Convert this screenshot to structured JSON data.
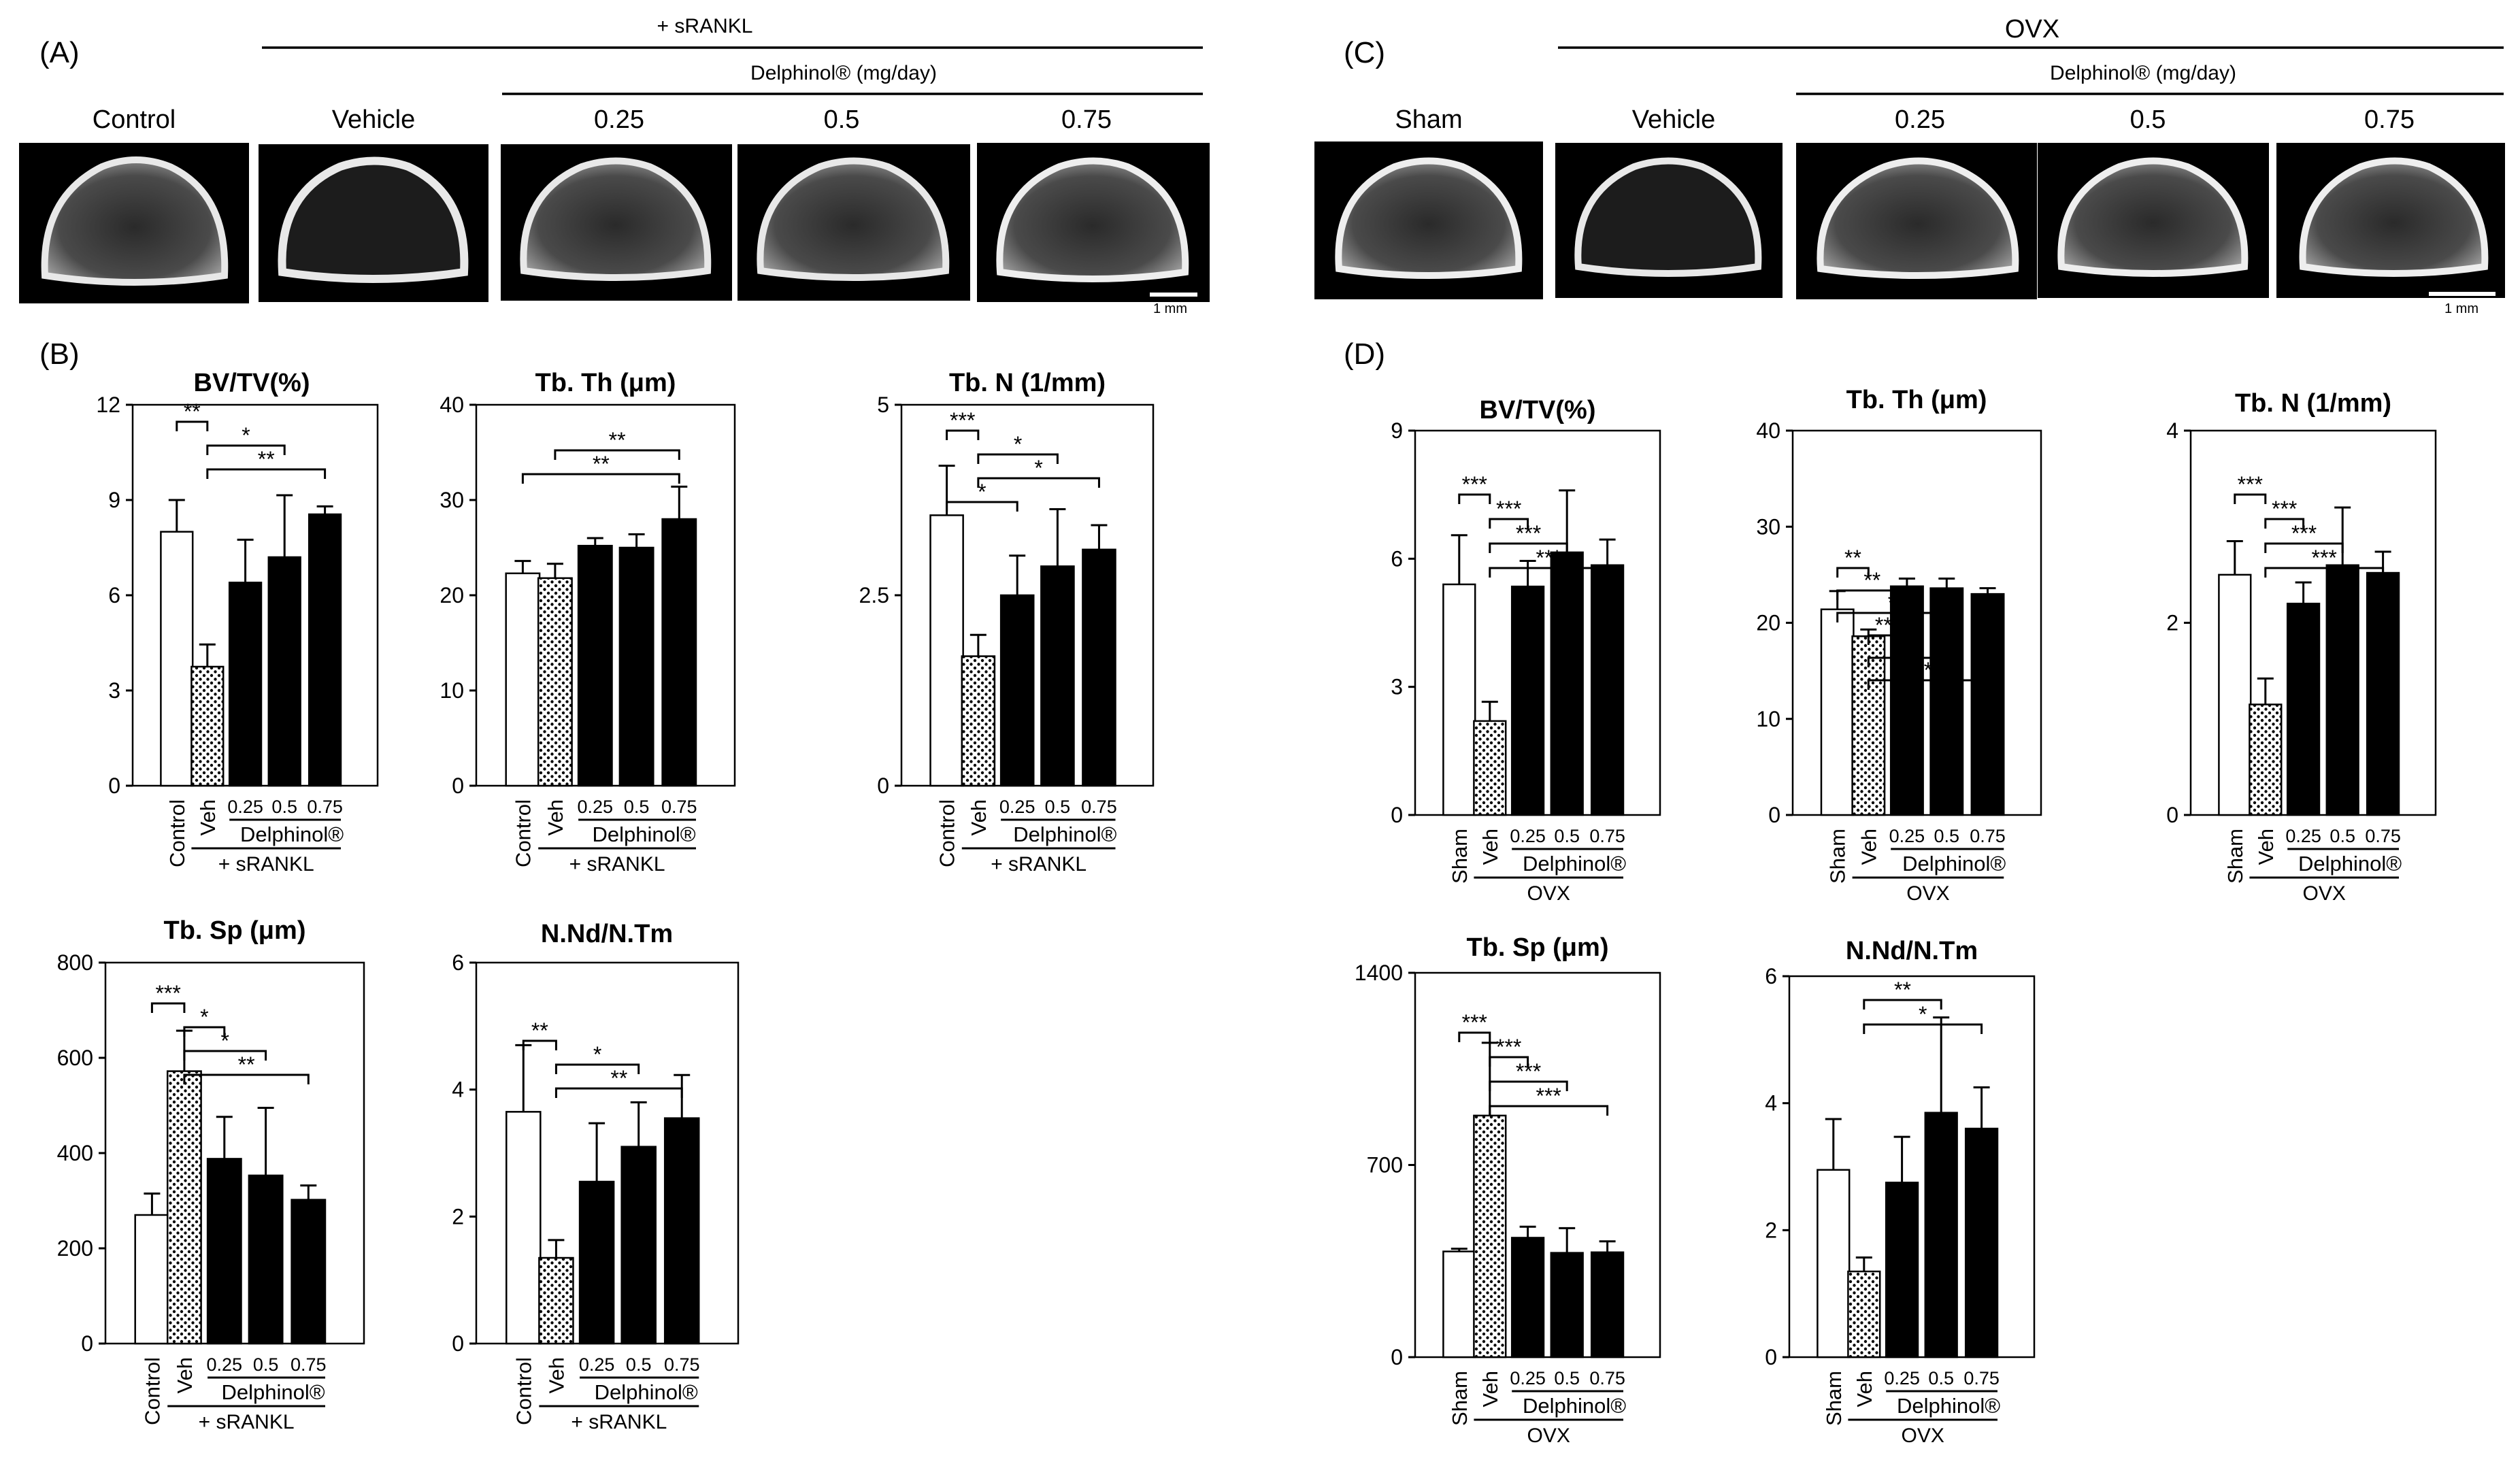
{
  "panels": {
    "A": {
      "label": "(A)",
      "header_top": "+ sRANKL",
      "header_sub": "Delphinol®  (mg/day)",
      "images": [
        "Control",
        "Vehicle",
        "0.25",
        "0.5",
        "0.75"
      ],
      "scale_bar": "1 mm"
    },
    "B": {
      "label": "(B)"
    },
    "C": {
      "label": "(C)",
      "header_top": "OVX",
      "header_sub": "Delphinol®  (mg/day)",
      "images": [
        "Sham",
        "Vehicle",
        "0.25",
        "0.5",
        "0.75"
      ],
      "scale_bar": "1 mm"
    },
    "D": {
      "label": "(D)"
    }
  },
  "colors": {
    "open": "#ffffff",
    "veh": "#ffffff",
    "treated": "#000000",
    "ink": "#000000"
  },
  "chart_data": [
    {
      "id": "B1",
      "type": "bar",
      "title": "BV/TV(%)",
      "ylim": [
        0,
        12
      ],
      "yticks": [
        "0",
        "3",
        "6",
        "9",
        "12"
      ],
      "ctrl_label": "Control",
      "veh_label": "Veh",
      "doses": [
        "0.25",
        "0.5",
        "0.75"
      ],
      "delphinol": "Delphinol®",
      "group": "+ sRANKL",
      "values": [
        8.0,
        3.75,
        6.4,
        7.2,
        8.55
      ],
      "errors": [
        1.0,
        0.7,
        1.35,
        1.95,
        0.25
      ],
      "sig": [
        {
          "from": 0,
          "to": 1,
          "label": "**"
        },
        {
          "from": 1,
          "to": 3,
          "label": "*"
        },
        {
          "from": 1,
          "to": 4,
          "label": "**"
        }
      ]
    },
    {
      "id": "B2",
      "type": "bar",
      "title": "Tb. Th (μm)",
      "ylim": [
        0,
        40
      ],
      "yticks": [
        "0",
        "10",
        "20",
        "30",
        "40"
      ],
      "ctrl_label": "Control",
      "veh_label": "Veh",
      "doses": [
        "0.25",
        "0.5",
        "0.75"
      ],
      "delphinol": "Delphinol®",
      "group": "+ sRANKL",
      "values": [
        22.3,
        21.8,
        25.2,
        25.0,
        28.0
      ],
      "errors": [
        1.3,
        1.5,
        0.8,
        1.4,
        3.4
      ],
      "sig": [
        {
          "from": 1,
          "to": 4,
          "label": "**"
        },
        {
          "from": 0,
          "to": 4,
          "label": "**"
        }
      ]
    },
    {
      "id": "B3",
      "type": "bar",
      "title": "Tb. N (1/mm)",
      "ylim": [
        0,
        5
      ],
      "yticks": [
        "0",
        "2.5",
        "5"
      ],
      "ctrl_label": "Control",
      "veh_label": "Veh",
      "doses": [
        "0.25",
        "0.5",
        "0.75"
      ],
      "delphinol": "Delphinol®",
      "group": "+ sRANKL",
      "values": [
        3.55,
        1.7,
        2.5,
        2.88,
        3.1
      ],
      "errors": [
        0.65,
        0.28,
        0.52,
        0.75,
        0.32
      ],
      "sig": [
        {
          "from": 0,
          "to": 1,
          "label": "***"
        },
        {
          "from": 1,
          "to": 3,
          "label": "*"
        },
        {
          "from": 1,
          "to": 4,
          "label": "*"
        },
        {
          "from": 0,
          "to": 2,
          "label": "*"
        }
      ]
    },
    {
      "id": "B4",
      "type": "bar",
      "title": "Tb. Sp (μm)",
      "ylim": [
        0,
        800
      ],
      "yticks": [
        "0",
        "200",
        "400",
        "600",
        "800"
      ],
      "ctrl_label": "Control",
      "veh_label": "Veh",
      "doses": [
        "0.25",
        "0.5",
        "0.75"
      ],
      "delphinol": "Delphinol®",
      "group": "+ sRANKL",
      "values": [
        270,
        572,
        388,
        353,
        302
      ],
      "errors": [
        45,
        85,
        88,
        142,
        30
      ],
      "sig": [
        {
          "from": 0,
          "to": 1,
          "label": "***"
        },
        {
          "from": 1,
          "to": 2,
          "label": "*"
        },
        {
          "from": 1,
          "to": 3,
          "label": "*"
        },
        {
          "from": 1,
          "to": 4,
          "label": "**"
        }
      ]
    },
    {
      "id": "B5",
      "type": "bar",
      "title": "N.Nd/N.Tm",
      "ylim": [
        0,
        6
      ],
      "yticks": [
        "0",
        "2",
        "4",
        "6"
      ],
      "ctrl_label": "Control",
      "veh_label": "Veh",
      "doses": [
        "0.25",
        "0.5",
        "0.75"
      ],
      "delphinol": "Delphinol®",
      "group": "+ sRANKL",
      "values": [
        3.65,
        1.35,
        2.55,
        3.1,
        3.55
      ],
      "errors": [
        1.05,
        0.28,
        0.92,
        0.7,
        0.68
      ],
      "sig": [
        {
          "from": 0,
          "to": 1,
          "label": "**"
        },
        {
          "from": 1,
          "to": 3,
          "label": "*"
        },
        {
          "from": 1,
          "to": 4,
          "label": "**"
        }
      ]
    },
    {
      "id": "D1",
      "type": "bar",
      "title": "BV/TV(%)",
      "ylim": [
        0,
        9
      ],
      "yticks": [
        "0",
        "3",
        "6",
        "9"
      ],
      "ctrl_label": "Sham",
      "veh_label": "Veh",
      "doses": [
        "0.25",
        "0.5",
        "0.75"
      ],
      "delphinol": "Delphinol®",
      "group": "OVX",
      "values": [
        5.4,
        2.2,
        5.35,
        6.15,
        5.85
      ],
      "errors": [
        1.15,
        0.45,
        0.6,
        1.45,
        0.6
      ],
      "sig": [
        {
          "from": 0,
          "to": 1,
          "label": "***"
        },
        {
          "from": 1,
          "to": 2,
          "label": "***"
        },
        {
          "from": 1,
          "to": 3,
          "label": "***"
        },
        {
          "from": 1,
          "to": 4,
          "label": "***"
        }
      ]
    },
    {
      "id": "D2",
      "type": "bar",
      "title": "Tb. Th (μm)",
      "ylim": [
        0,
        40
      ],
      "yticks": [
        "0",
        "10",
        "20",
        "30",
        "40"
      ],
      "ctrl_label": "Sham",
      "veh_label": "Veh",
      "doses": [
        "0.25",
        "0.5",
        "0.75"
      ],
      "delphinol": "Delphinol®",
      "group": "OVX",
      "values": [
        21.4,
        18.6,
        23.8,
        23.6,
        23.0
      ],
      "errors": [
        1.9,
        0.7,
        0.8,
        1.0,
        0.6
      ],
      "sig": [
        {
          "from": 0,
          "to": 1,
          "label": "**"
        },
        {
          "from": 0,
          "to": 2,
          "label": "**"
        },
        {
          "from": 0,
          "to": 3,
          "label": "*"
        },
        {
          "from": 1,
          "to": 2,
          "label": "***"
        },
        {
          "from": 1,
          "to": 3,
          "label": "***"
        },
        {
          "from": 1,
          "to": 4,
          "label": "***"
        }
      ]
    },
    {
      "id": "D3",
      "type": "bar",
      "title": "Tb. N (1/mm)",
      "ylim": [
        0,
        4
      ],
      "yticks": [
        "0",
        "2",
        "4"
      ],
      "ctrl_label": "Sham",
      "veh_label": "Veh",
      "doses": [
        "0.25",
        "0.5",
        "0.75"
      ],
      "delphinol": "Delphinol®",
      "group": "OVX",
      "values": [
        2.5,
        1.15,
        2.2,
        2.6,
        2.52
      ],
      "errors": [
        0.35,
        0.27,
        0.22,
        0.6,
        0.22
      ],
      "sig": [
        {
          "from": 0,
          "to": 1,
          "label": "***"
        },
        {
          "from": 1,
          "to": 2,
          "label": "***"
        },
        {
          "from": 1,
          "to": 3,
          "label": "***"
        },
        {
          "from": 1,
          "to": 4,
          "label": "***"
        }
      ]
    },
    {
      "id": "D4",
      "type": "bar",
      "title": "Tb. Sp (μm)",
      "ylim": [
        0,
        1400
      ],
      "yticks": [
        "0",
        "700",
        "1400"
      ],
      "ctrl_label": "Sham",
      "veh_label": "Veh",
      "doses": [
        "0.25",
        "0.5",
        "0.75"
      ],
      "delphinol": "Delphinol®",
      "group": "OVX",
      "values": [
        385,
        880,
        435,
        380,
        382
      ],
      "errors": [
        10,
        265,
        40,
        90,
        40
      ],
      "sig": [
        {
          "from": 0,
          "to": 1,
          "label": "***"
        },
        {
          "from": 1,
          "to": 2,
          "label": "***"
        },
        {
          "from": 1,
          "to": 3,
          "label": "***"
        },
        {
          "from": 1,
          "to": 4,
          "label": "***"
        }
      ]
    },
    {
      "id": "D5",
      "type": "bar",
      "title": "N.Nd/N.Tm",
      "ylim": [
        0,
        6
      ],
      "yticks": [
        "0",
        "2",
        "4",
        "6"
      ],
      "ctrl_label": "Sham",
      "veh_label": "Veh",
      "doses": [
        "0.25",
        "0.5",
        "0.75"
      ],
      "delphinol": "Delphinol®",
      "group": "OVX",
      "values": [
        2.95,
        1.35,
        2.75,
        3.85,
        3.6
      ],
      "errors": [
        0.8,
        0.22,
        0.72,
        1.5,
        0.65
      ],
      "sig": [
        {
          "from": 1,
          "to": 3,
          "label": "**"
        },
        {
          "from": 1,
          "to": 4,
          "label": "*"
        }
      ]
    }
  ]
}
